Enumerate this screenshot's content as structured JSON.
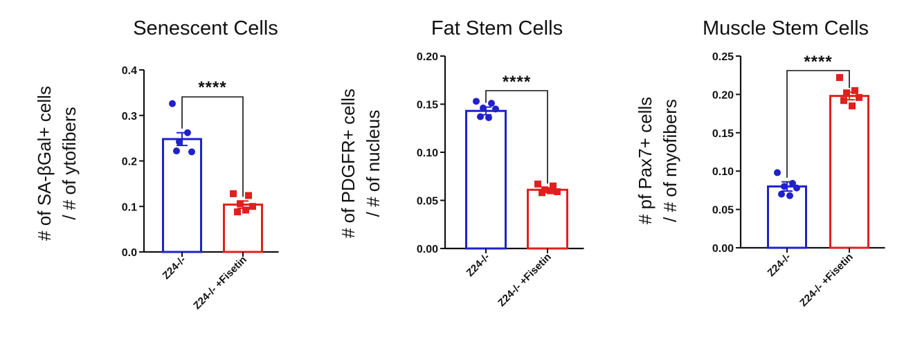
{
  "chart_data": [
    {
      "type": "bar",
      "title": "Senescent Cells",
      "ylabel_lines": [
        "# of SA-βGal+ cells",
        "/ # of ytofibers"
      ],
      "ylim": [
        0,
        0.4
      ],
      "yticks": [
        "0.0",
        "0.1",
        "0.2",
        "0.3",
        "0.4"
      ],
      "categories": [
        "Z24-/-",
        "Z24-/- +Fisetin"
      ],
      "values": [
        0.248,
        0.104
      ],
      "sem": [
        0.014,
        0.008
      ],
      "points": [
        [
          0.326,
          0.262,
          0.242,
          0.22,
          0.222
        ],
        [
          0.128,
          0.124,
          0.106,
          0.1,
          0.088,
          0.092
        ]
      ],
      "colors": [
        "#1f22c8",
        "#e0201e"
      ],
      "significance": "****",
      "grid": false
    },
    {
      "type": "bar",
      "title": "Fat Stem Cells",
      "ylabel_lines": [
        "# of PDGFR+ cells",
        "/ # of nucleus"
      ],
      "ylim": [
        0,
        0.2
      ],
      "yticks": [
        "0.00",
        "0.05",
        "0.10",
        "0.15",
        "0.20"
      ],
      "categories": [
        "Z24-/-",
        "Z24-/- +Fisetin"
      ],
      "values": [
        0.143,
        0.061
      ],
      "sem": [
        0.004,
        0.002
      ],
      "points": [
        [
          0.153,
          0.151,
          0.146,
          0.145,
          0.137,
          0.136
        ],
        [
          0.067,
          0.065,
          0.061,
          0.059,
          0.058,
          0.06
        ]
      ],
      "colors": [
        "#1f22c8",
        "#e0201e"
      ],
      "significance": "****",
      "grid": false
    },
    {
      "type": "bar",
      "title": "Muscle Stem Cells",
      "ylabel_lines": [
        "# pf Pax7+ cells",
        "/ # of myofibers"
      ],
      "ylim": [
        0,
        0.25
      ],
      "yticks": [
        "0.00",
        "0.05",
        "0.10",
        "0.15",
        "0.20",
        "0.25"
      ],
      "categories": [
        "Z24-/-",
        "Z24-/- +Fisetin"
      ],
      "values": [
        0.08,
        0.198
      ],
      "sem": [
        0.006,
        0.005
      ],
      "points": [
        [
          0.098,
          0.084,
          0.08,
          0.078,
          0.07,
          0.068
        ],
        [
          0.222,
          0.205,
          0.202,
          0.196,
          0.192,
          0.185
        ]
      ],
      "colors": [
        "#1f22c8",
        "#e0201e"
      ],
      "significance": "****",
      "grid": false
    }
  ]
}
